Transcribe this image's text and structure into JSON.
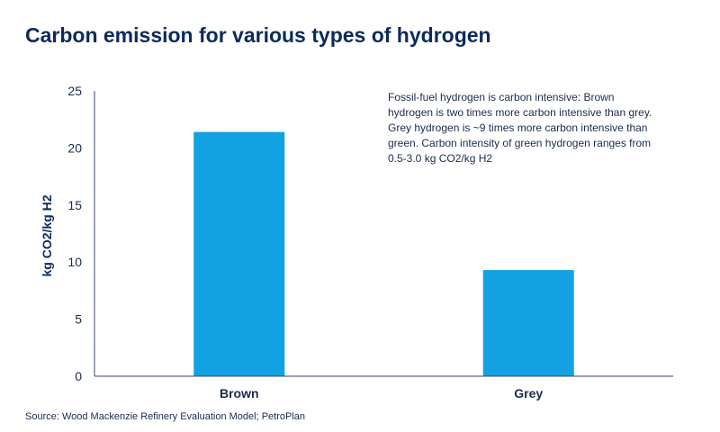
{
  "title": "Carbon emission for various types of hydrogen",
  "annotation": "Fossil-fuel hydrogen is carbon intensive: Brown hydrogen is two times more carbon intensive than grey. Grey hydrogen is ~9 times more carbon intensive than green. Carbon intensity of green hydrogen ranges from 0.5-3.0 kg CO2/kg H2",
  "source": "Source: Wood Mackenzie Refinery Evaluation Model; PetroPlan",
  "colors": {
    "bar": "#12a1e3",
    "axis": "#3a4a6a",
    "title": "#0d2a5c"
  },
  "chart_data": {
    "type": "bar",
    "categories": [
      "Brown",
      "Grey"
    ],
    "values": [
      21.4,
      9.3
    ],
    "ylabel": "kg CO2/kg H2",
    "ylim": [
      0,
      25
    ],
    "yticks": [
      0,
      5,
      10,
      15,
      20,
      25
    ],
    "grid": false,
    "legend": "none"
  }
}
